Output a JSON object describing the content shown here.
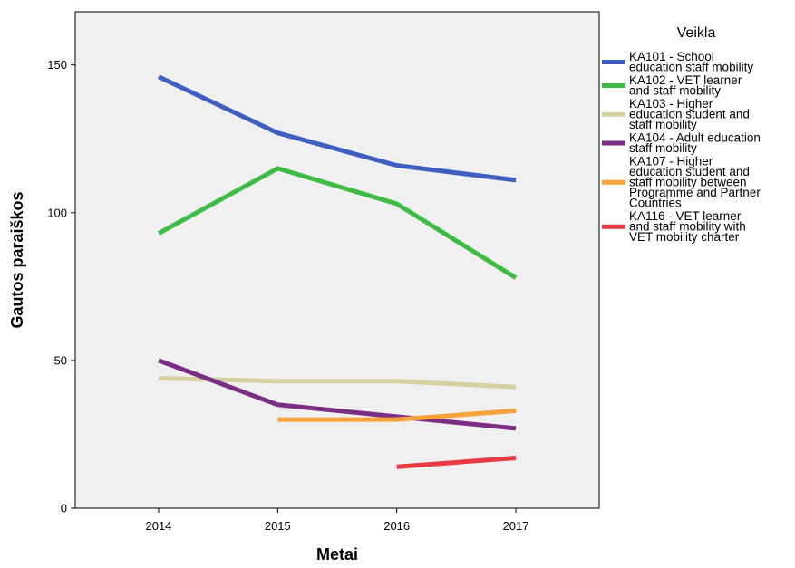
{
  "chart_data": {
    "type": "line",
    "xlabel": "Metai",
    "ylabel": "Gautos paraiškos",
    "x": [
      2014,
      2015,
      2016,
      2017
    ],
    "x_tick_labels": [
      "2014",
      "2015",
      "2016",
      "2017"
    ],
    "xlim": [
      2013.3,
      2017.7
    ],
    "ylim": [
      0,
      168
    ],
    "y_ticks": [
      0,
      50,
      100,
      150
    ],
    "y_tick_labels": [
      "0",
      "50",
      "100",
      "150"
    ],
    "grid": false,
    "background_color": "#f0f0f0",
    "legend": {
      "title": "Veikla",
      "position": "right"
    },
    "series": [
      {
        "name": "KA101 - School education staff mobility",
        "legend_lines": [
          "KA101 - School",
          "education staff mobility"
        ],
        "color": "#3e5fc1",
        "values": [
          146,
          127,
          116,
          111
        ]
      },
      {
        "name": "KA102 - VET learner and staff mobility",
        "legend_lines": [
          "KA102 - VET learner",
          "and staff mobility"
        ],
        "color": "#3dbb45",
        "values": [
          93,
          115,
          103,
          78
        ]
      },
      {
        "name": "KA103 - Higher education student and staff mobility",
        "legend_lines": [
          "KA103 - Higher",
          "education student and",
          "staff mobility"
        ],
        "color": "#d5d0a0",
        "values": [
          44,
          43,
          43,
          41
        ]
      },
      {
        "name": "KA104 - Adult education staff mobility",
        "legend_lines": [
          "KA104 - Adult education",
          "staff mobility"
        ],
        "color": "#7a2e84",
        "values": [
          50,
          35,
          31,
          27
        ]
      },
      {
        "name": "KA107 - Higher education student and staff mobility between Programme and Partner Countries",
        "legend_lines": [
          "KA107 - Higher",
          "education student and",
          "staff mobility between",
          "Programme and Partner",
          "Countries"
        ],
        "color": "#f7a23a",
        "values": [
          null,
          30,
          30,
          33
        ]
      },
      {
        "name": "KA116 - VET learner and staff mobility with VET mobility charter",
        "legend_lines": [
          "KA116 - VET learner",
          "and staff mobility with",
          "VET mobility charter"
        ],
        "color": "#e83a45",
        "values": [
          null,
          null,
          14,
          17
        ]
      }
    ]
  }
}
